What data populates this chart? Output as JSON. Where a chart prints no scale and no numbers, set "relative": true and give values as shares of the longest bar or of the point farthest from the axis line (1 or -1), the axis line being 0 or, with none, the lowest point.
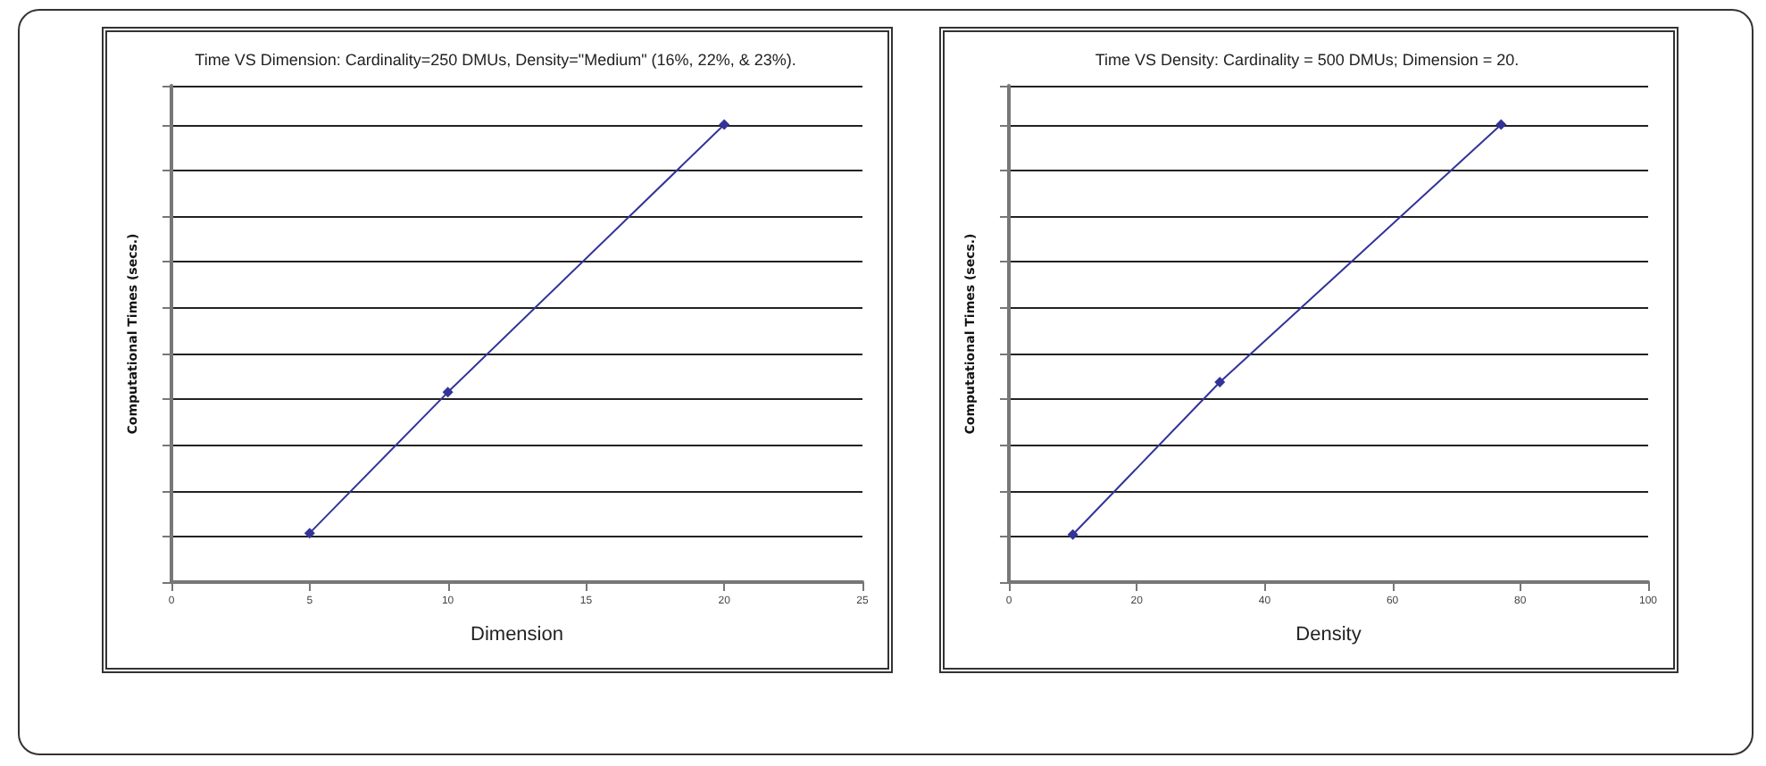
{
  "chart_data": [
    {
      "type": "line",
      "title": "Time VS Dimension: Cardinality=250 DMUs, Density=\"Medium\" (16%, 22%, & 23%).",
      "xlabel": "Dimension",
      "ylabel": "Computational Times (secs.)",
      "relative": true,
      "x": [
        5,
        10,
        20
      ],
      "xlim": [
        0,
        25
      ],
      "xticks": [
        0,
        5,
        10,
        15,
        20,
        25
      ],
      "series": [
        {
          "color": "#333399",
          "values": [
            0.107,
            0.415,
            1
          ]
        }
      ],
      "grid": "y",
      "marker": "diamond",
      "line_style": "solid"
    },
    {
      "type": "line",
      "title": "Time VS Density: Cardinality = 500 DMUs; Dimension = 20.",
      "xlabel": "Density",
      "ylabel": "Computational Times (secs.)",
      "relative": true,
      "x": [
        10,
        33,
        77
      ],
      "xlim": [
        0,
        100
      ],
      "xticks": [
        0,
        20,
        40,
        60,
        80,
        100
      ],
      "series": [
        {
          "color": "#333399",
          "values": [
            0.104,
            0.437,
            1
          ]
        }
      ],
      "grid": "y",
      "marker": "diamond",
      "line_style": "solid"
    }
  ]
}
